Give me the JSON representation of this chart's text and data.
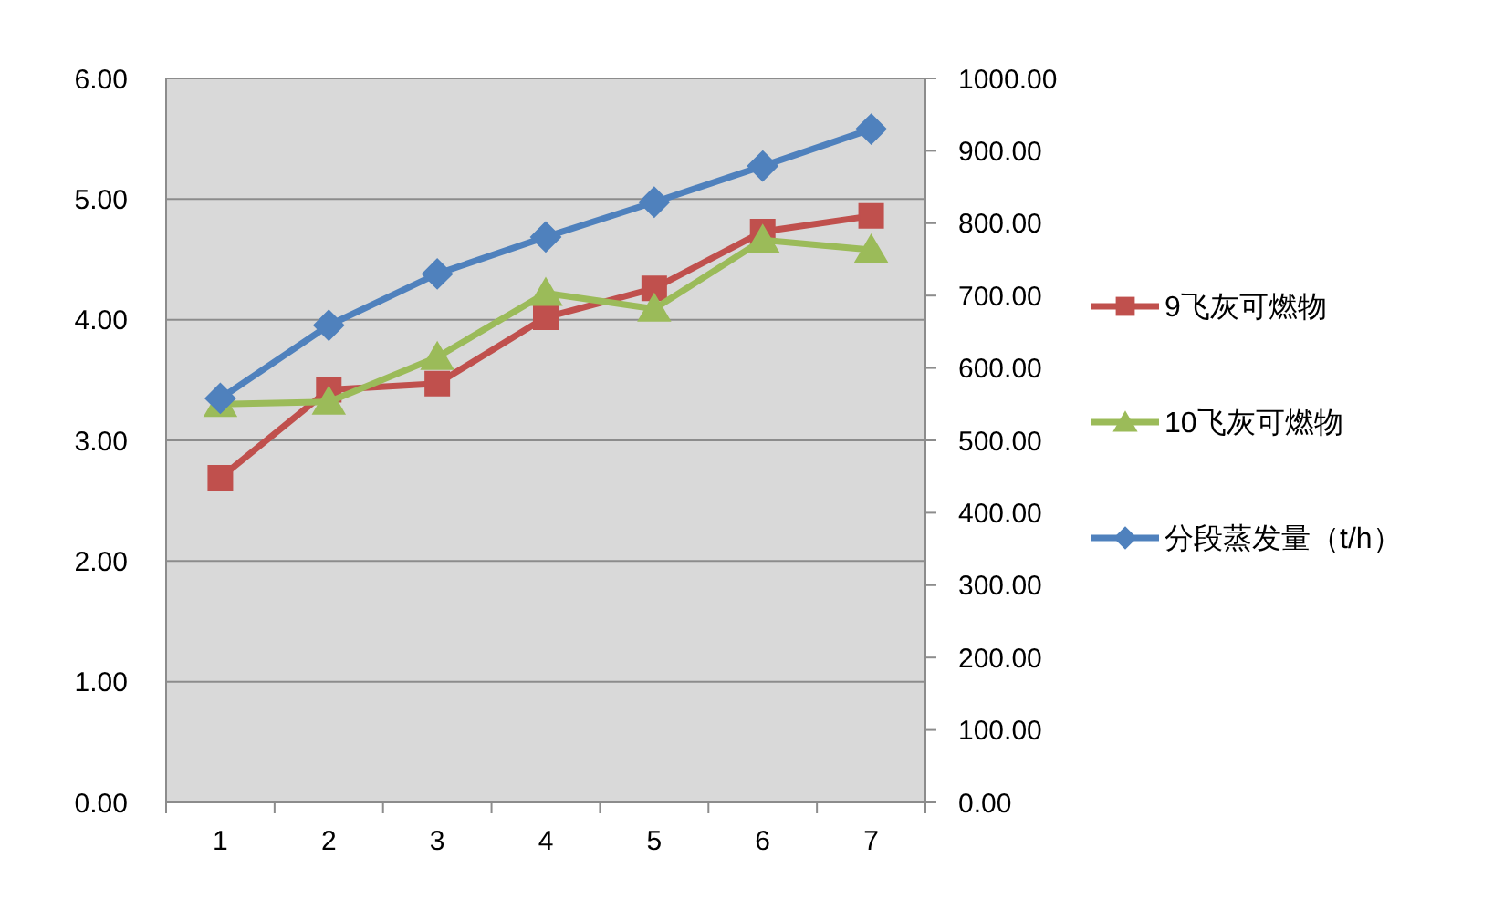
{
  "chart_data": {
    "type": "line",
    "categories": [
      "1",
      "2",
      "3",
      "4",
      "5",
      "6",
      "7"
    ],
    "series": [
      {
        "name": "9飞灰可燃物",
        "color": "#c0504d",
        "marker": "square",
        "values": [
          2.69,
          3.42,
          3.47,
          4.02,
          4.26,
          4.73,
          4.86
        ]
      },
      {
        "name": "10飞灰可燃物",
        "color": "#9bbb59",
        "marker": "triangle",
        "values": [
          3.3,
          3.32,
          3.69,
          4.22,
          4.09,
          4.66,
          4.58
        ]
      },
      {
        "name": "分段蒸发量（t/h）",
        "color": "#4f81bd",
        "marker": "diamond",
        "axis": "y2",
        "values": [
          558,
          659,
          730,
          781,
          829,
          879,
          930
        ]
      }
    ],
    "ylim": [
      0,
      6
    ],
    "yticks": [
      {
        "value": 0,
        "label": "0.00"
      },
      {
        "value": 1,
        "label": "1.00"
      },
      {
        "value": 2,
        "label": "2.00"
      },
      {
        "value": 3,
        "label": "3.00"
      },
      {
        "value": 4,
        "label": "4.00"
      },
      {
        "value": 5,
        "label": "5.00"
      },
      {
        "value": 6,
        "label": "6.00"
      }
    ],
    "y2lim": [
      0,
      1000
    ],
    "y2ticks": [
      {
        "value": 0,
        "label": "0.00"
      },
      {
        "value": 100,
        "label": "100.00"
      },
      {
        "value": 200,
        "label": "200.00"
      },
      {
        "value": 300,
        "label": "300.00"
      },
      {
        "value": 400,
        "label": "400.00"
      },
      {
        "value": 500,
        "label": "500.00"
      },
      {
        "value": 600,
        "label": "600.00"
      },
      {
        "value": 700,
        "label": "700.00"
      },
      {
        "value": 800,
        "label": "800.00"
      },
      {
        "value": 900,
        "label": "900.00"
      },
      {
        "value": 1000,
        "label": "1000.00"
      }
    ],
    "grid": "y",
    "legend": "right"
  }
}
